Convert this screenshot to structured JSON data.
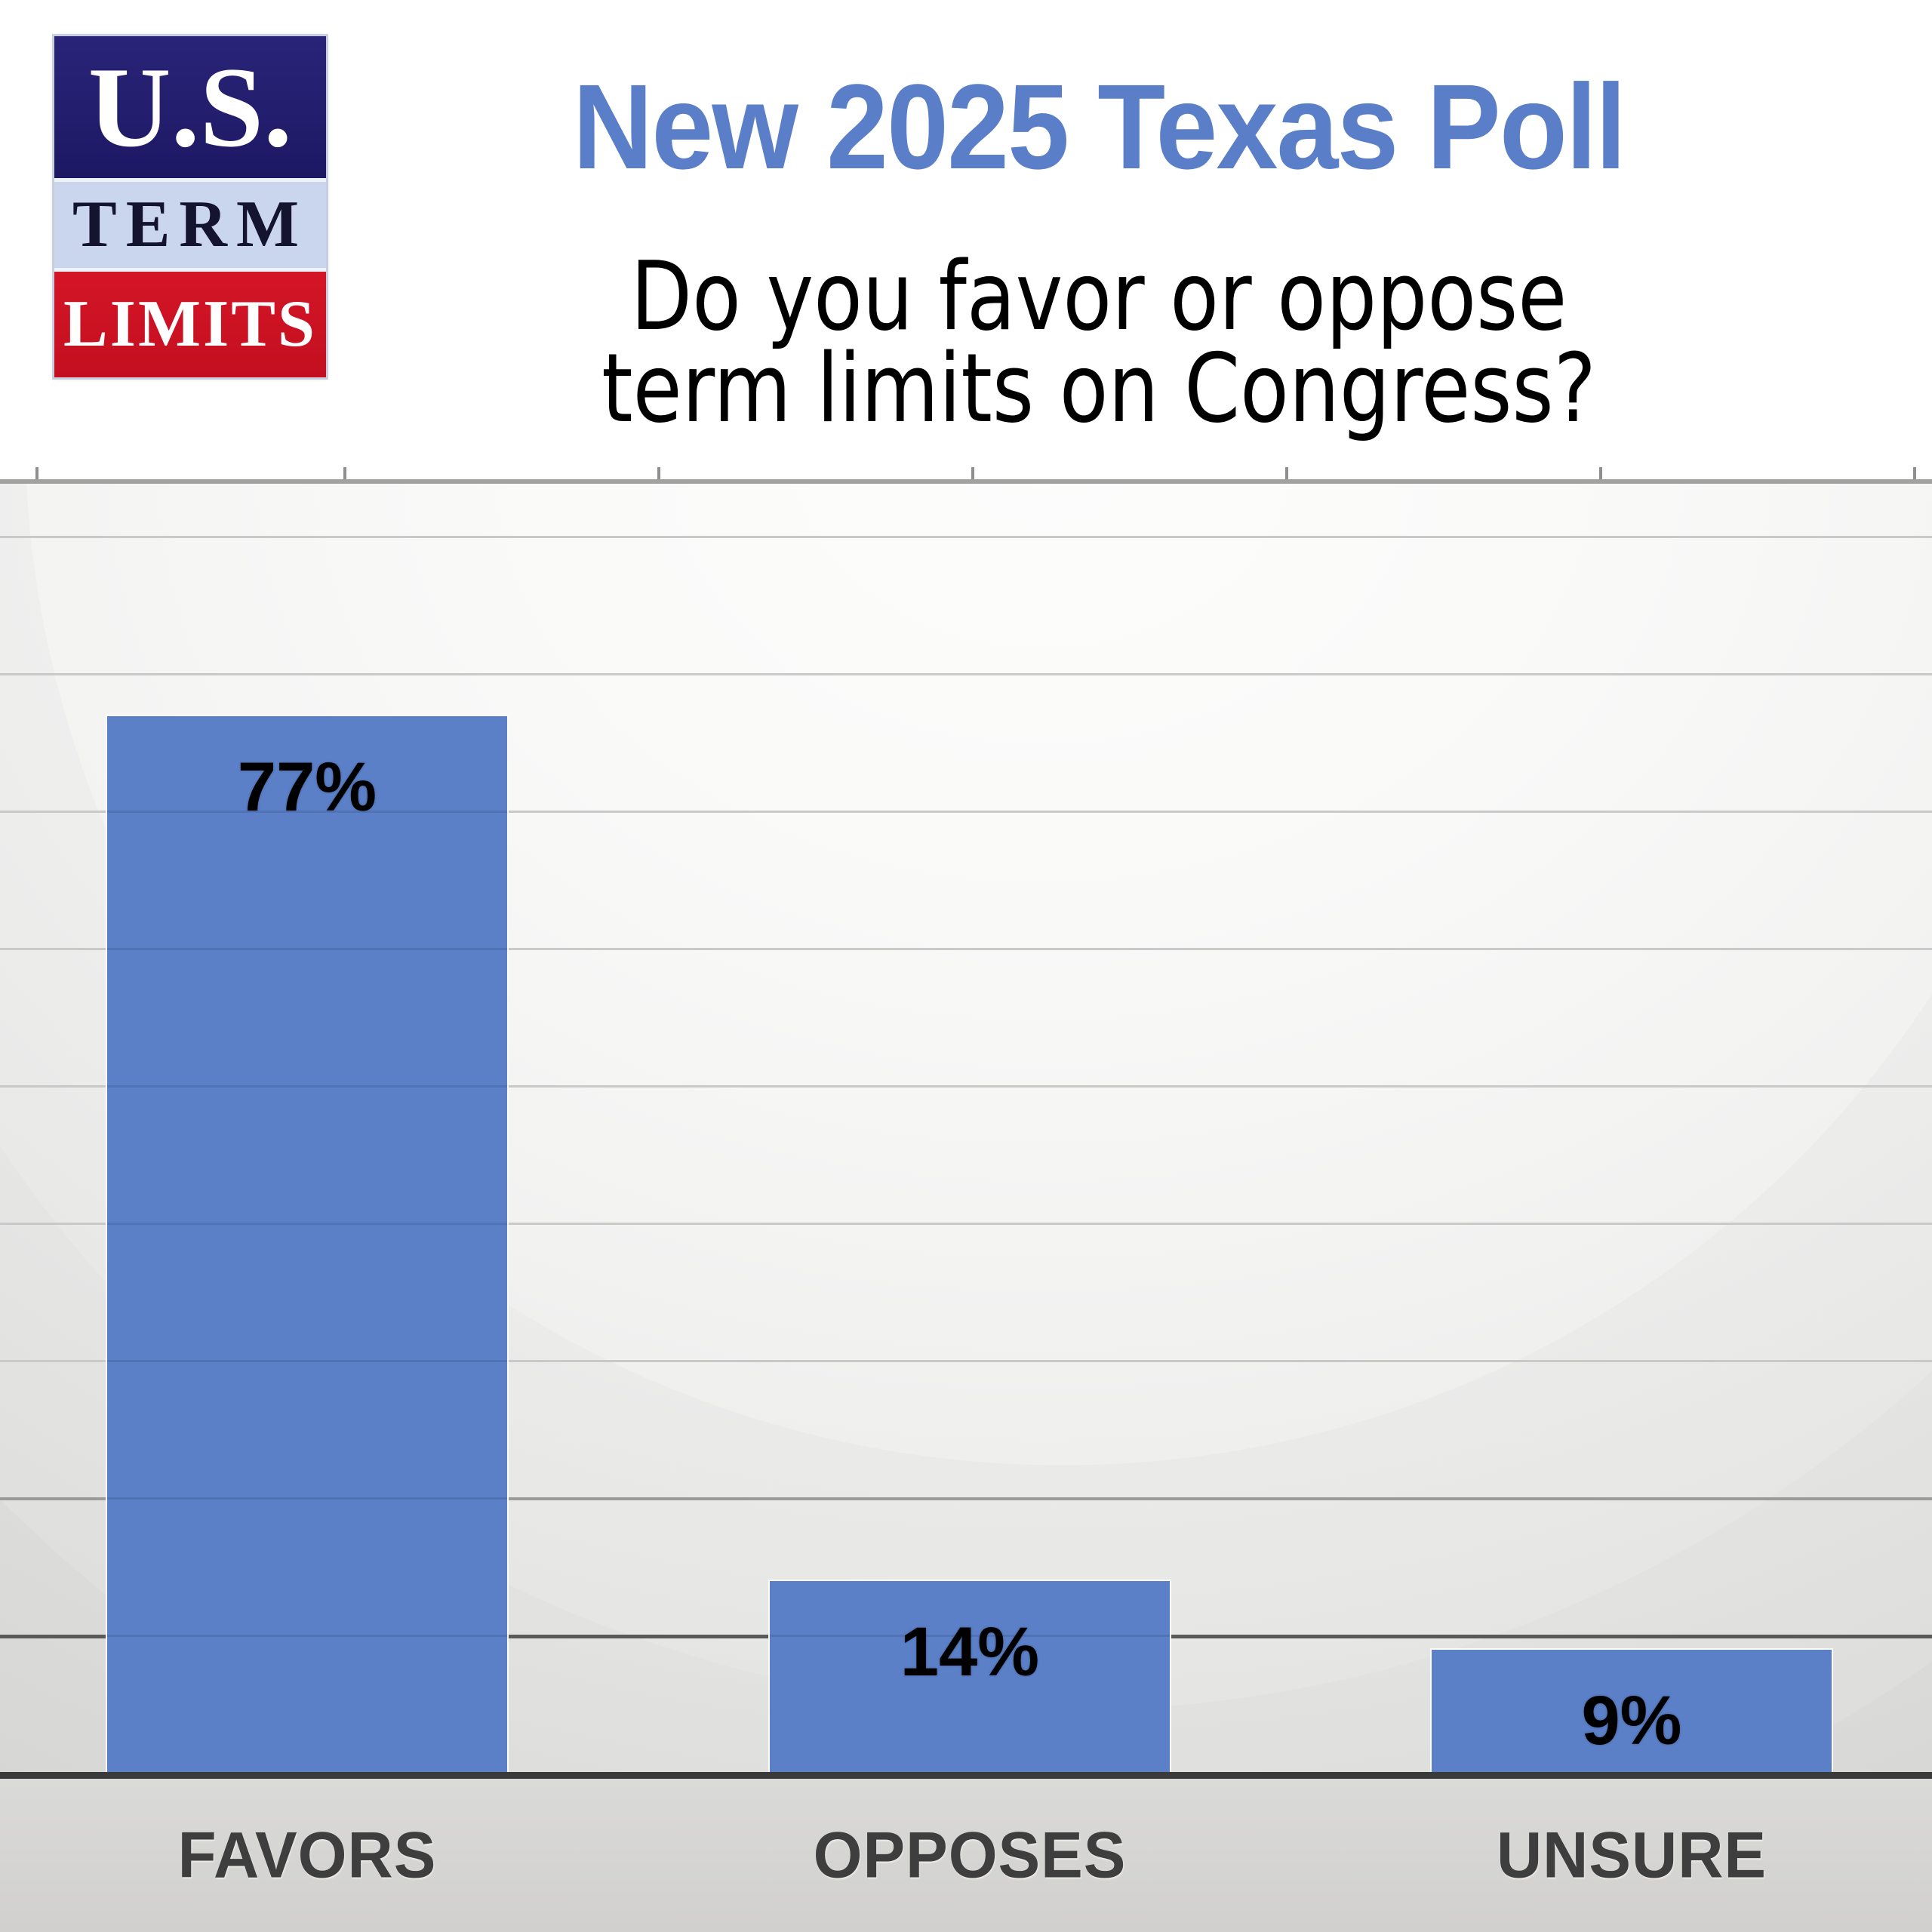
{
  "logo": {
    "name": "U.S. Term Limits logo",
    "line_top": "U.S.",
    "line_middle": "TERM",
    "line_bottom": "LIMITS",
    "colors": {
      "top_band": "#221d6d",
      "middle_band": "#c9d6ee",
      "bottom_band": "#cd1222",
      "top_text": "#ffffff",
      "middle_text": "#14142e",
      "bottom_text": "#ffffff"
    }
  },
  "header": {
    "title": "New 2025 Texas Poll",
    "title_color": "#5b7ec8",
    "subtitle_line1": "Do you favor or oppose",
    "subtitle_line2": "term limits on Congress?",
    "subtitle_color": "#000000"
  },
  "chart_data": {
    "type": "bar",
    "title": "New 2025 Texas Poll",
    "subtitle": "Do you favor or oppose term limits on Congress?",
    "categories": [
      "FAVORS",
      "OPPOSES",
      "UNSURE"
    ],
    "values": [
      77,
      14,
      9
    ],
    "value_labels": [
      "77%",
      "14%",
      "9%"
    ],
    "xlabel": "",
    "ylabel": "",
    "ylim": [
      0,
      94
    ],
    "gridline_interval": 10,
    "grid": "horizontal",
    "legend": "none",
    "value_label_position": "inside-end",
    "colors": {
      "bar": "#5b80c8",
      "bar_border": "#fbfbfb",
      "value_label": "#000000",
      "category_label": "#3e3e3e",
      "axis_line": "#3a3a3a",
      "gridline": "#c9c9c8",
      "gridline_dark": "#59595a",
      "plot_top_border": "#a2a2a1",
      "category_strip": "#d6d5d3"
    }
  }
}
